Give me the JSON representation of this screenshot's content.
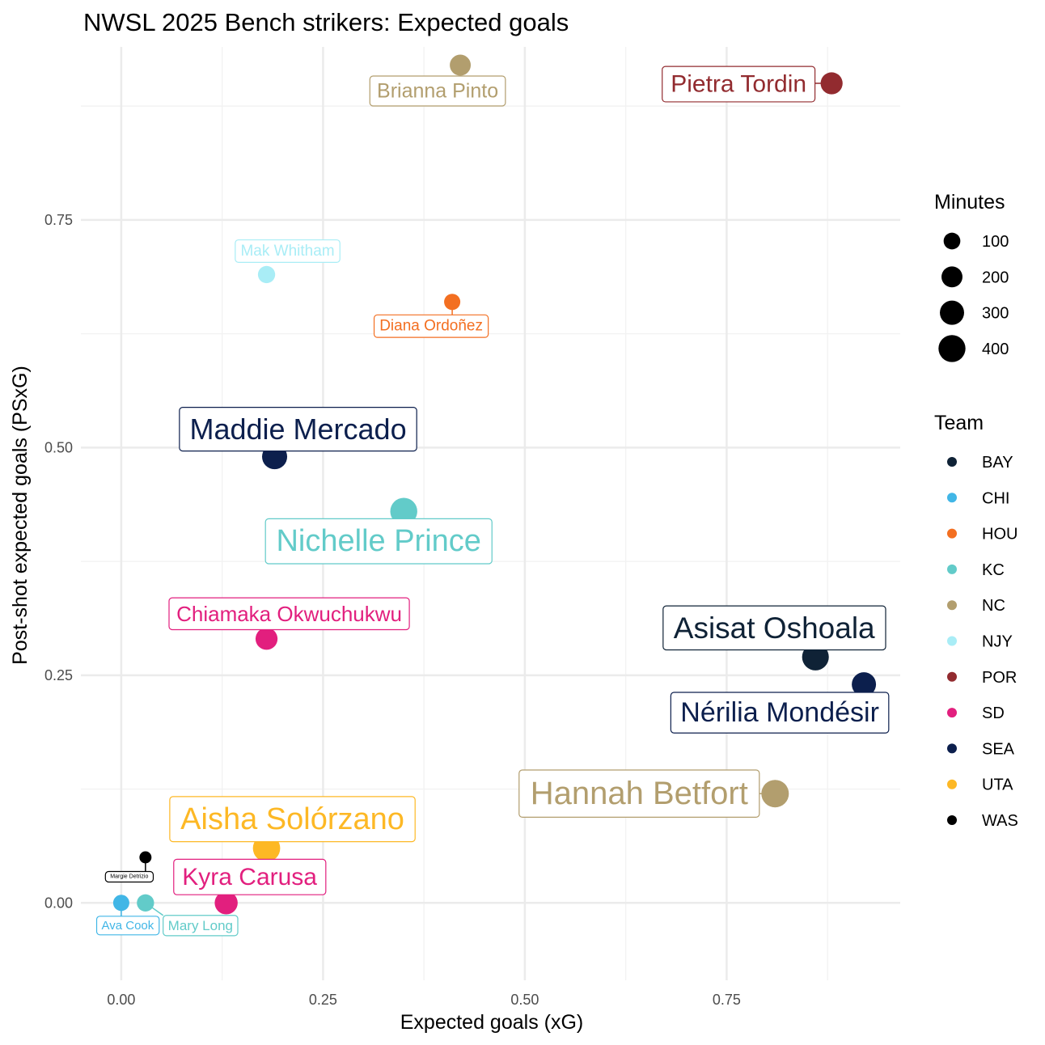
{
  "chart_data": {
    "type": "scatter",
    "title": "NWSL 2025 Bench strikers: Expected goals",
    "xlabel": "Expected goals (xG)",
    "ylabel": "Post-shot expected goals (PSxG)",
    "xlim": [
      -0.05,
      0.965
    ],
    "ylim": [
      -0.085,
      0.94
    ],
    "x_ticks": [
      0.0,
      0.25,
      0.5,
      0.75
    ],
    "x_tick_labels": [
      "0.00",
      "0.25",
      "0.50",
      "0.75"
    ],
    "y_ticks": [
      0.0,
      0.25,
      0.5,
      0.75
    ],
    "y_tick_labels": [
      "0.00",
      "0.25",
      "0.50",
      "0.75"
    ],
    "grid": true,
    "legend_placement": "right",
    "size_legend": {
      "title": "Minutes",
      "values": [
        100,
        200,
        300,
        400
      ],
      "labels": [
        "100",
        "200",
        "300",
        "400"
      ]
    },
    "color_legend": {
      "title": "Team",
      "entries": [
        {
          "label": "BAY",
          "color": "#0f2236"
        },
        {
          "label": "CHI",
          "color": "#41b6e6"
        },
        {
          "label": "HOU",
          "color": "#f36f21"
        },
        {
          "label": "KC",
          "color": "#62cbc9"
        },
        {
          "label": "NC",
          "color": "#b29e6e"
        },
        {
          "label": "NJY",
          "color": "#a9edf6"
        },
        {
          "label": "POR",
          "color": "#922b2f"
        },
        {
          "label": "SD",
          "color": "#e21f7e"
        },
        {
          "label": "SEA",
          "color": "#0c1f4d"
        },
        {
          "label": "UTA",
          "color": "#fdb825"
        },
        {
          "label": "WAS",
          "color": "#000000"
        }
      ]
    },
    "points": [
      {
        "name": "Brianna Pinto",
        "team": "NC",
        "xg": 0.42,
        "psxg": 0.92,
        "minutes": 200
      },
      {
        "name": "Pietra Tordin",
        "team": "POR",
        "xg": 0.88,
        "psxg": 0.9,
        "minutes": 230
      },
      {
        "name": "Mak Whitham",
        "team": "NJY",
        "xg": 0.18,
        "psxg": 0.69,
        "minutes": 110
      },
      {
        "name": "Diana Ordoñez",
        "team": "HOU",
        "xg": 0.41,
        "psxg": 0.66,
        "minutes": 90
      },
      {
        "name": "Maddie Mercado",
        "team": "SEA",
        "xg": 0.19,
        "psxg": 0.49,
        "minutes": 330
      },
      {
        "name": "Nichelle Prince",
        "team": "KC",
        "xg": 0.35,
        "psxg": 0.43,
        "minutes": 400
      },
      {
        "name": "Chiamaka Okwuchukwu",
        "team": "SD",
        "xg": 0.18,
        "psxg": 0.29,
        "minutes": 230
      },
      {
        "name": "Asisat Oshoala",
        "team": "BAY",
        "xg": 0.86,
        "psxg": 0.27,
        "minutes": 390
      },
      {
        "name": "Nérilia Mondésir",
        "team": "SEA",
        "xg": 0.92,
        "psxg": 0.24,
        "minutes": 300
      },
      {
        "name": "Hannah Betfort",
        "team": "NC",
        "xg": 0.81,
        "psxg": 0.12,
        "minutes": 420
      },
      {
        "name": "Aisha Solórzano",
        "team": "UTA",
        "xg": 0.18,
        "psxg": 0.06,
        "minutes": 410
      },
      {
        "name": "Margie Detrizio",
        "team": "WAS",
        "xg": 0.03,
        "psxg": 0.05,
        "minutes": 30
      },
      {
        "name": "Kyra Carusa",
        "team": "SD",
        "xg": 0.13,
        "psxg": 0.0,
        "minutes": 260
      },
      {
        "name": "Ava Cook",
        "team": "CHI",
        "xg": 0.0,
        "psxg": 0.0,
        "minutes": 90
      },
      {
        "name": "Mary Long",
        "team": "KC",
        "xg": 0.03,
        "psxg": 0.0,
        "minutes": 110
      }
    ]
  }
}
